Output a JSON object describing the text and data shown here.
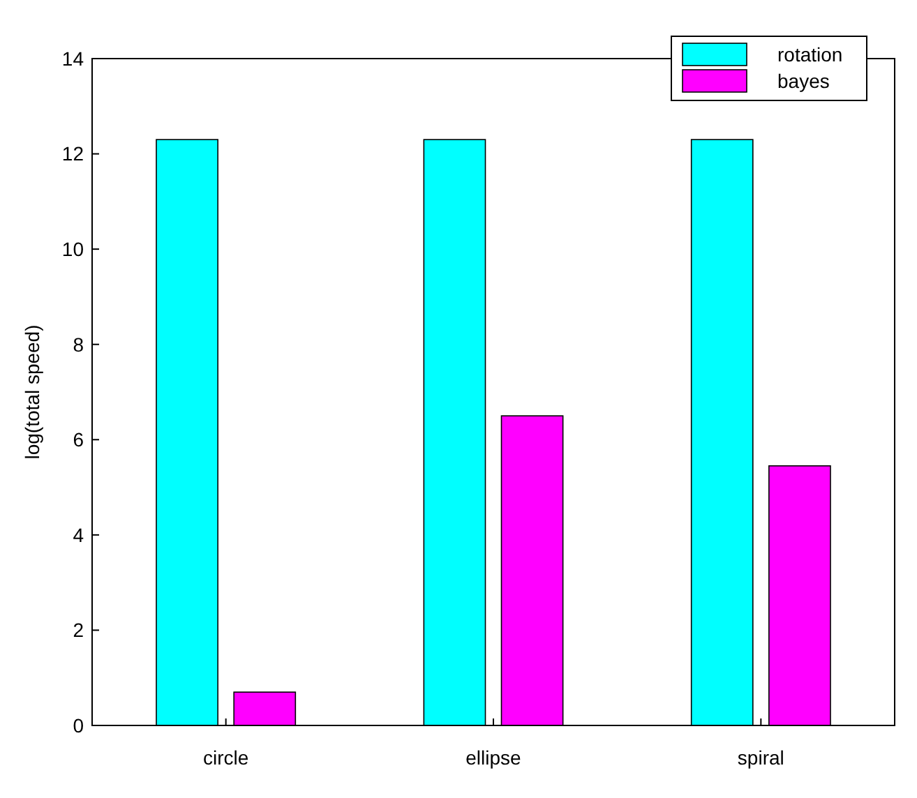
{
  "chart_data": {
    "type": "bar",
    "ylabel": "log(total speed)",
    "categories": [
      "circle",
      "ellipse",
      "spiral"
    ],
    "series": [
      {
        "name": "rotation",
        "color": "#00ffff",
        "values": [
          12.3,
          12.3,
          12.3
        ]
      },
      {
        "name": "bayes",
        "color": "#ff00ff",
        "values": [
          0.7,
          6.5,
          5.45
        ]
      }
    ],
    "ylim": [
      0,
      14
    ],
    "yticks": [
      0,
      2,
      4,
      6,
      8,
      10,
      12,
      14
    ],
    "grid": false,
    "legend": "top right"
  }
}
